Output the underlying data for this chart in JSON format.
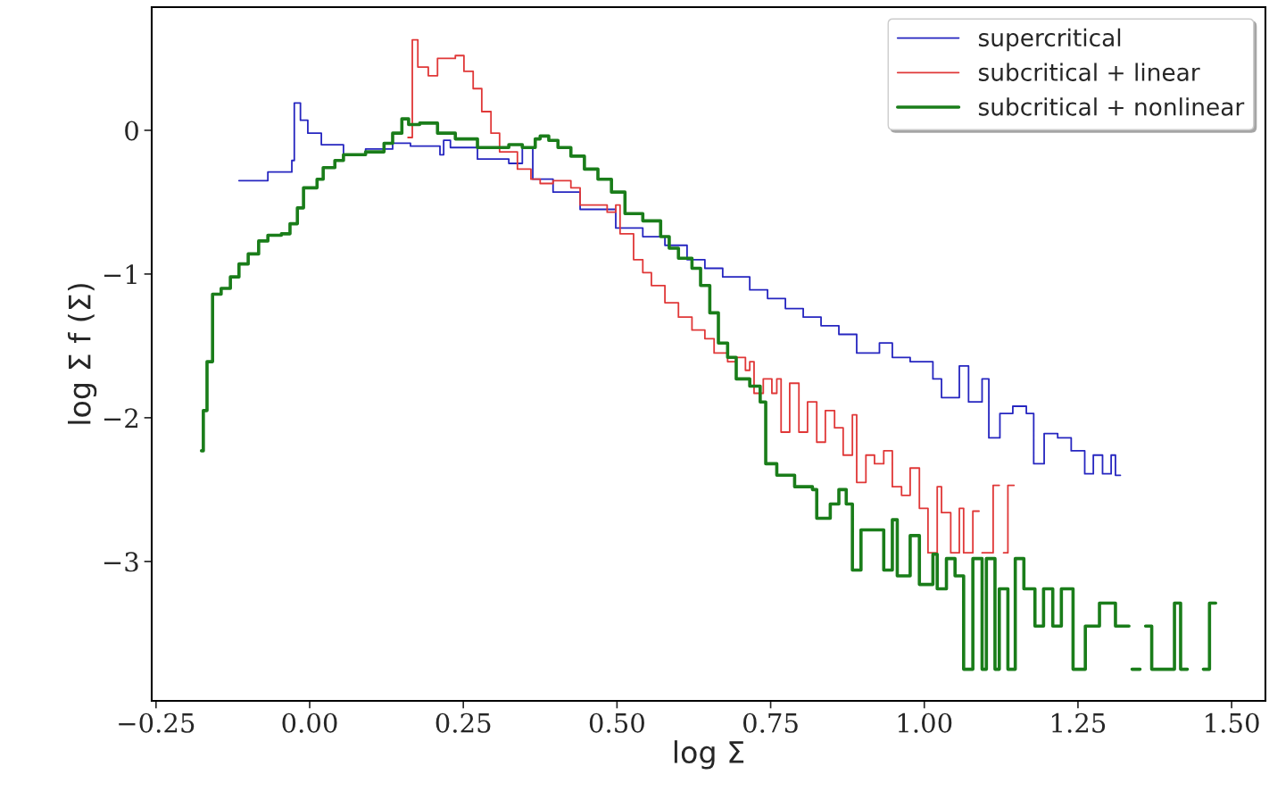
{
  "chart_data": {
    "type": "step",
    "xlabel": "log Σ",
    "ylabel": "log Σ f (Σ)",
    "xlim": [
      -0.257,
      1.555
    ],
    "ylim": [
      -3.97,
      0.857
    ],
    "xticks": [
      {
        "value": -0.25,
        "label": "−0.25"
      },
      {
        "value": 0,
        "label": "0.00"
      },
      {
        "value": 0.25,
        "label": "0.25"
      },
      {
        "value": 0.5,
        "label": "0.50"
      },
      {
        "value": 0.75,
        "label": "0.75"
      },
      {
        "value": 1.0,
        "label": "1.00"
      },
      {
        "value": 1.25,
        "label": "1.25"
      },
      {
        "value": 1.5,
        "label": "1.50"
      }
    ],
    "yticks": [
      {
        "value": 0,
        "label": "0"
      },
      {
        "value": -1,
        "label": "−1"
      },
      {
        "value": -2,
        "label": "−2"
      },
      {
        "value": -3,
        "label": "−3"
      }
    ],
    "legend": "top right",
    "grid": false,
    "series": [
      {
        "name": "supercritical",
        "color": "#2626c0",
        "x": [
          -0.115,
          -0.068,
          -0.029,
          -0.025,
          -0.015,
          -0.003,
          0.019,
          0.055,
          0.091,
          0.135,
          0.164,
          0.212,
          0.218,
          0.229,
          0.273,
          0.324,
          0.346,
          0.363,
          0.396,
          0.44,
          0.498,
          0.542,
          0.578,
          0.614,
          0.643,
          0.672,
          0.716,
          0.745,
          0.774,
          0.803,
          0.832,
          0.861,
          0.89,
          0.927,
          0.948,
          0.977,
          1.014,
          1.028,
          1.057,
          1.072,
          1.094,
          1.105,
          1.123,
          1.144,
          1.166,
          1.178,
          1.195,
          1.217,
          1.239,
          1.261,
          1.275,
          1.29,
          1.304,
          1.311,
          1.319
        ],
        "values": [
          -0.35,
          -0.29,
          -0.21,
          0.19,
          0.07,
          -0.02,
          -0.1,
          -0.17,
          -0.13,
          -0.09,
          -0.11,
          -0.17,
          -0.07,
          -0.12,
          -0.2,
          -0.23,
          -0.12,
          -0.34,
          -0.43,
          -0.55,
          -0.68,
          -0.74,
          -0.8,
          -0.9,
          -0.96,
          -1.02,
          -1.11,
          -1.17,
          -1.24,
          -1.3,
          -1.36,
          -1.42,
          -1.55,
          -1.48,
          -1.58,
          -1.61,
          -1.73,
          -1.86,
          -1.64,
          -1.89,
          -1.73,
          -2.14,
          -1.97,
          -1.92,
          -1.97,
          -2.32,
          -2.11,
          -2.14,
          -2.23,
          -2.39,
          -2.26,
          -2.39,
          -2.26,
          -2.4,
          -2.4
        ]
      },
      {
        "name": "subcritical + linear",
        "color": "#e03838",
        "x": [
          0.16,
          0.167,
          0.176,
          0.193,
          0.208,
          0.237,
          0.251,
          0.266,
          0.28,
          0.295,
          0.309,
          0.338,
          0.36,
          0.375,
          0.396,
          0.425,
          0.44,
          0.484,
          0.498,
          0.505,
          0.527,
          0.542,
          0.556,
          0.578,
          0.6,
          0.622,
          0.643,
          0.658,
          0.68,
          0.694,
          0.709,
          0.716,
          0.723,
          0.738,
          0.752,
          0.76,
          0.767,
          0.781,
          0.796,
          0.81,
          0.825,
          0.839,
          0.854,
          0.868,
          0.883,
          0.89,
          0.905,
          0.919,
          0.934,
          0.948,
          0.963,
          0.977,
          0.992,
          1.006,
          1.021,
          1.028,
          1.043,
          1.057,
          1.064,
          1.079,
          1.089,
          1.094,
          1.112,
          1.122,
          1.129,
          1.136,
          1.146
        ],
        "values": [
          -0.05,
          0.63,
          0.44,
          0.38,
          0.5,
          0.52,
          0.41,
          0.29,
          0.13,
          -0.02,
          -0.15,
          -0.27,
          -0.34,
          -0.37,
          -0.35,
          -0.4,
          -0.52,
          -0.57,
          -0.52,
          -0.72,
          -0.9,
          -0.99,
          -1.08,
          -1.2,
          -1.3,
          -1.39,
          -1.45,
          -1.55,
          -1.61,
          -1.58,
          -1.67,
          -1.61,
          -1.83,
          -1.73,
          -1.83,
          -1.73,
          -2.1,
          -1.76,
          -2.1,
          -1.89,
          -2.17,
          -1.95,
          -2.07,
          -2.26,
          -1.98,
          -2.45,
          -2.26,
          -2.32,
          -2.23,
          -2.48,
          -2.54,
          -2.35,
          -2.63,
          -2.94,
          -2.48,
          -2.66,
          -2.94,
          -2.63,
          -2.94,
          -2.65,
          null,
          -2.94,
          -2.47,
          null,
          -2.94,
          -2.47,
          -2.47
        ]
      },
      {
        "name": "subcritical + nonlinear",
        "color": "#1a7d1a",
        "x": [
          -0.176,
          -0.173,
          -0.167,
          -0.158,
          -0.144,
          -0.129,
          -0.115,
          -0.1,
          -0.083,
          -0.068,
          -0.046,
          -0.032,
          -0.02,
          -0.01,
          0.012,
          0.022,
          0.041,
          0.055,
          0.091,
          0.121,
          0.135,
          0.15,
          0.161,
          0.179,
          0.193,
          0.208,
          0.237,
          0.273,
          0.324,
          0.346,
          0.367,
          0.375,
          0.389,
          0.404,
          0.425,
          0.447,
          0.469,
          0.491,
          0.513,
          0.542,
          0.571,
          0.585,
          0.6,
          0.622,
          0.636,
          0.651,
          0.665,
          0.68,
          0.694,
          0.716,
          0.733,
          0.742,
          0.76,
          0.789,
          0.818,
          0.825,
          0.847,
          0.861,
          0.873,
          0.883,
          0.897,
          0.934,
          0.948,
          0.956,
          0.977,
          0.992,
          1.014,
          1.021,
          1.036,
          1.05,
          1.064,
          1.079,
          1.094,
          1.101,
          1.115,
          1.122,
          1.136,
          1.148,
          1.162,
          1.18,
          1.194,
          1.209,
          1.223,
          1.242,
          1.262,
          1.285,
          1.311,
          1.333,
          1.338,
          1.351,
          1.36,
          1.37,
          1.407,
          1.417,
          1.428,
          1.454,
          1.464,
          1.474
        ],
        "values": [
          -2.23,
          -1.95,
          -1.61,
          -1.14,
          -1.1,
          -1.02,
          -0.93,
          -0.86,
          -0.77,
          -0.73,
          -0.72,
          -0.65,
          -0.54,
          -0.4,
          -0.34,
          -0.26,
          -0.21,
          -0.17,
          -0.15,
          -0.09,
          -0.02,
          0.08,
          0.04,
          0.05,
          0.05,
          -0.02,
          -0.06,
          -0.12,
          -0.1,
          -0.12,
          -0.06,
          -0.04,
          -0.07,
          -0.12,
          -0.18,
          -0.27,
          -0.34,
          -0.43,
          -0.58,
          -0.63,
          -0.74,
          -0.82,
          -0.89,
          -0.96,
          -1.08,
          -1.27,
          -1.48,
          -1.58,
          -1.73,
          -1.78,
          -1.89,
          -2.32,
          -2.4,
          -2.48,
          -2.5,
          -2.7,
          -2.6,
          -2.5,
          -2.6,
          -3.06,
          -2.78,
          -3.06,
          -2.71,
          -3.1,
          -2.82,
          -3.16,
          -2.95,
          -3.19,
          -2.98,
          -3.1,
          -3.75,
          -2.98,
          -3.75,
          -2.98,
          -3.75,
          -3.19,
          -3.75,
          -2.98,
          -3.19,
          -3.45,
          -3.19,
          -3.45,
          -3.19,
          -3.75,
          -3.45,
          -3.29,
          -3.45,
          null,
          -3.75,
          null,
          -3.45,
          -3.75,
          -3.29,
          -3.75,
          null,
          -3.75,
          -3.29,
          -3.29
        ]
      }
    ]
  }
}
